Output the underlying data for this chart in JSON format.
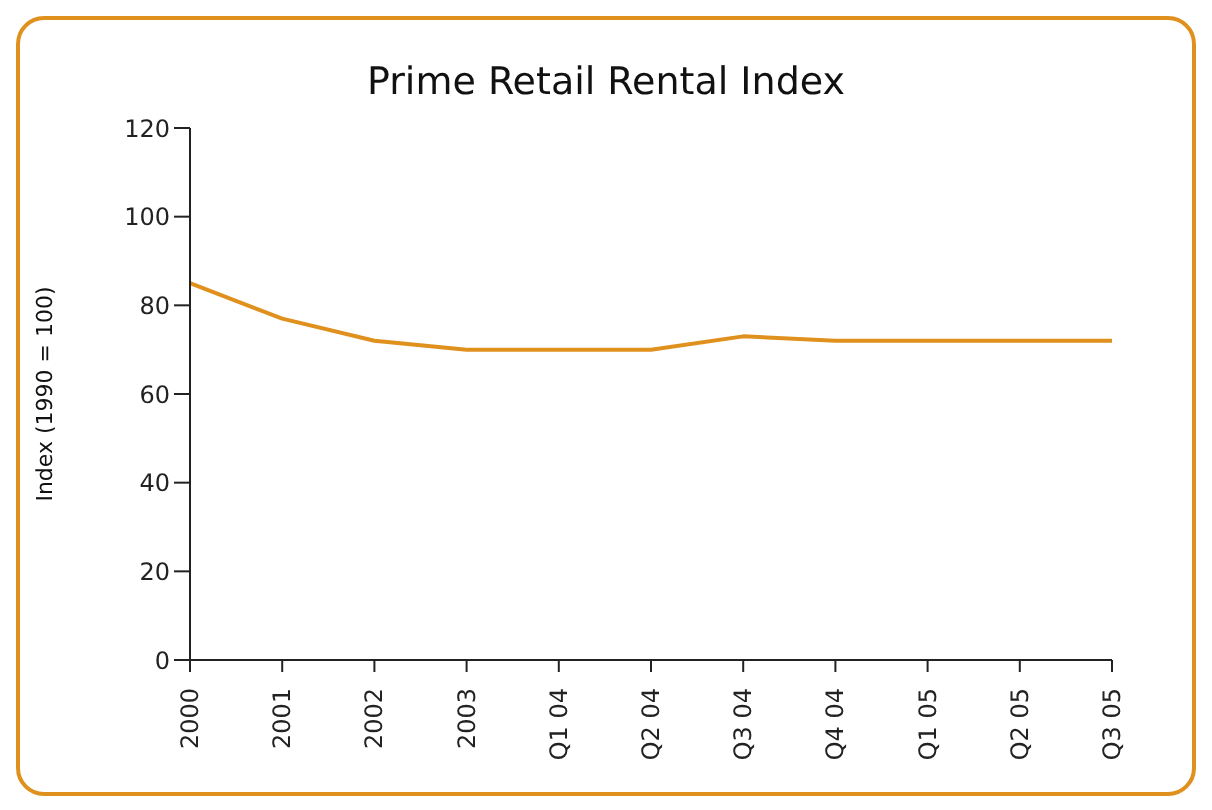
{
  "chart_data": {
    "type": "line",
    "title": "Prime Retail Rental Index",
    "ylabel": "Index (1990 = 100)",
    "categories": [
      "2000",
      "2001",
      "2002",
      "2003",
      "Q1 04",
      "Q2 04",
      "Q3 04",
      "Q4 04",
      "Q1 05",
      "Q2 05",
      "Q3 05"
    ],
    "series": [
      {
        "color": "#e0901c",
        "values": [
          85,
          77,
          72,
          70,
          70,
          70,
          73,
          72,
          72,
          72,
          72
        ]
      }
    ],
    "ylim": [
      0,
      120
    ],
    "yticks": [
      0,
      20,
      40,
      60,
      80,
      100,
      120
    ],
    "grid": false,
    "legend": false,
    "marker": "none",
    "line_style": "solid"
  }
}
